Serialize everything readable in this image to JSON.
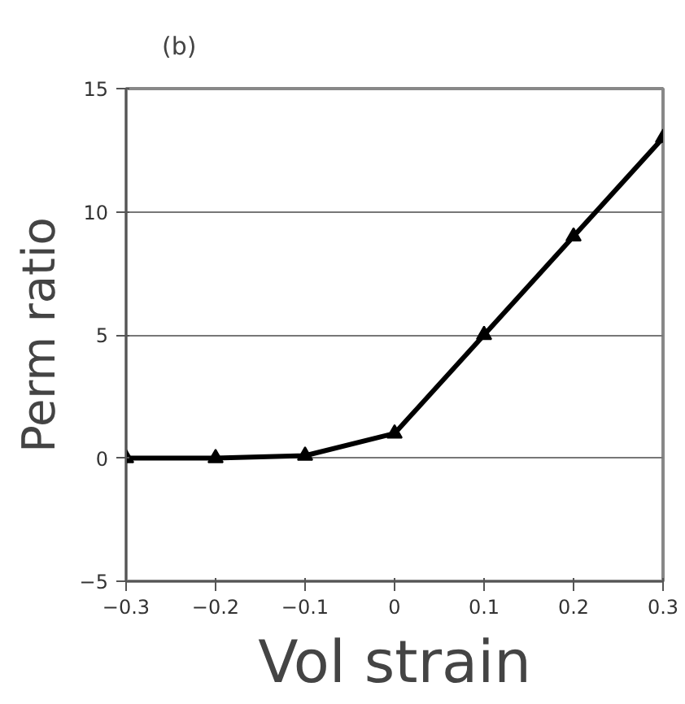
{
  "chart_data": {
    "type": "line",
    "annotations": [
      "(b)"
    ],
    "xlabel": "Vol strain",
    "ylabel": "Perm ratio",
    "x": [
      -0.3,
      -0.2,
      -0.1,
      0,
      0.1,
      0.2,
      0.3
    ],
    "series": [
      {
        "color": "#000000",
        "values": [
          0,
          0,
          0.1,
          1,
          5,
          9,
          13
        ]
      }
    ],
    "xlim": [
      -0.3,
      0.3
    ],
    "ylim": [
      -5,
      15
    ],
    "xticks": [
      -0.3,
      -0.2,
      -0.1,
      0,
      0.1,
      0.2,
      0.3
    ],
    "yticks": [
      -5,
      0,
      5,
      10,
      15
    ],
    "grid": "y",
    "marker": "triangle",
    "line_style": "solid"
  }
}
